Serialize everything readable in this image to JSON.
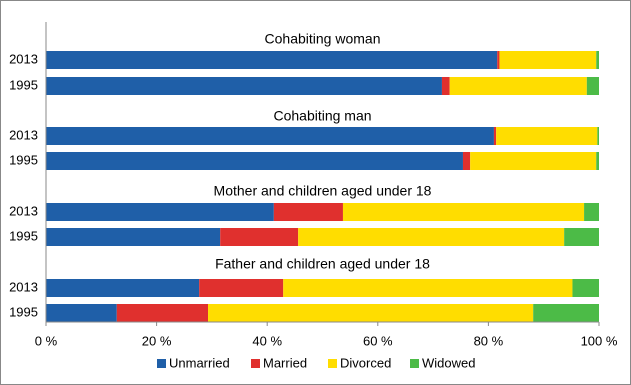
{
  "chart_data": {
    "type": "stacked-bar-horizontal",
    "group_titles": [
      "Cohabiting woman",
      "Cohabiting man",
      "Mother and children aged under 18",
      "Father and children aged under 18"
    ],
    "categories": [
      "2013",
      "1995",
      "2013",
      "1995",
      "2013",
      "1995",
      "2013",
      "1995"
    ],
    "series": [
      {
        "name": "Unmarried",
        "color": "#1f5fa8",
        "values": [
          81.6,
          71.6,
          81.0,
          75.4,
          41.2,
          31.5,
          27.7,
          12.8
        ]
      },
      {
        "name": "Married",
        "color": "#e0302e",
        "values": [
          0.4,
          1.4,
          0.4,
          1.3,
          12.5,
          14.1,
          15.2,
          16.5
        ]
      },
      {
        "name": "Divorced",
        "color": "#ffdd00",
        "values": [
          17.5,
          24.8,
          18.3,
          22.8,
          43.6,
          48.1,
          52.3,
          58.8
        ]
      },
      {
        "name": "Widowed",
        "color": "#4cbb47",
        "values": [
          0.5,
          2.2,
          0.3,
          0.5,
          2.7,
          6.3,
          4.8,
          11.9
        ]
      }
    ],
    "xlim": [
      0,
      100
    ],
    "xticks": [
      {
        "value": 0,
        "label": "0 %"
      },
      {
        "value": 20,
        "label": "20 %"
      },
      {
        "value": 40,
        "label": "40 %"
      },
      {
        "value": 60,
        "label": "60 %"
      },
      {
        "value": 80,
        "label": "80 %"
      },
      {
        "value": 100,
        "label": "100 %"
      }
    ],
    "legend": "bottom"
  }
}
